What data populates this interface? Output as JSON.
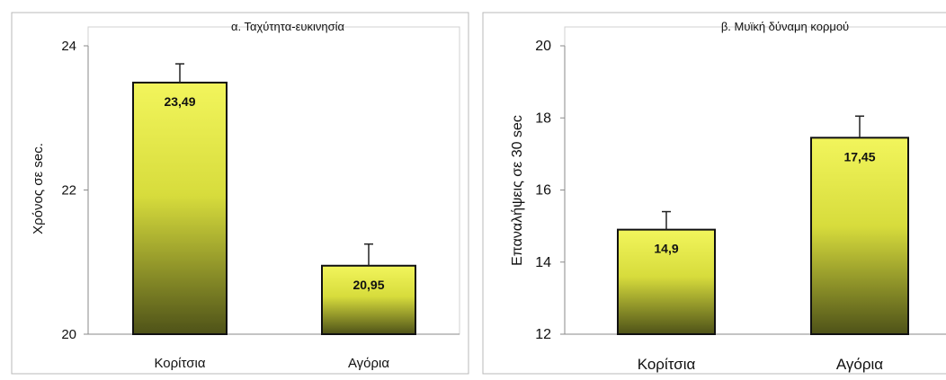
{
  "chart_data": [
    {
      "type": "bar",
      "title": "α. Ταχύτητα-ευκινησία",
      "ylabel": "Χρόνος σε sec.",
      "xlabel": "",
      "categories": [
        "Κορίτσια",
        "Αγόρια"
      ],
      "values": [
        23.49,
        20.95
      ],
      "value_labels": [
        "23,49",
        "20,95"
      ],
      "error_upper": [
        23.75,
        21.25
      ],
      "ylim": [
        20,
        24
      ],
      "yticks": [
        20,
        22,
        24
      ],
      "ytick_labels": [
        "20",
        "22",
        "24"
      ],
      "grid": false,
      "legend": "none"
    },
    {
      "type": "bar",
      "title": "β. Μυϊκή δύναμη κορμού",
      "ylabel": "Επαναλήψεις σε 30 sec",
      "xlabel": "",
      "categories": [
        "Κορίτσια",
        "Αγόρια"
      ],
      "values": [
        14.9,
        17.45
      ],
      "value_labels": [
        "14,9",
        "17,45"
      ],
      "error_upper": [
        15.4,
        18.05
      ],
      "ylim": [
        12,
        20
      ],
      "yticks": [
        12,
        14,
        16,
        18,
        20
      ],
      "ytick_labels": [
        "12",
        "14",
        "16",
        "18",
        "20"
      ],
      "grid": false,
      "legend": "none"
    }
  ],
  "colors": {
    "bar_top": "#f2f55c",
    "bar_mid": "#d7dc3c",
    "bar_bottom": "#4e5218",
    "bar_stroke": "#111111",
    "panel_border": "#b8b8b8",
    "axis": "#8a8a8a"
  }
}
